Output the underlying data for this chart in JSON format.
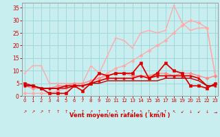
{
  "x": [
    0,
    1,
    2,
    3,
    4,
    5,
    6,
    7,
    8,
    9,
    10,
    11,
    12,
    13,
    14,
    15,
    16,
    17,
    18,
    19,
    20,
    21,
    22,
    23
  ],
  "series": [
    {
      "name": "upper_light1",
      "color": "#ffaaaa",
      "lw": 1.0,
      "marker": "D",
      "markersize": 2.5,
      "y": [
        1,
        1,
        1,
        1,
        2,
        3,
        4,
        5,
        6,
        7,
        9,
        11,
        12,
        14,
        16,
        18,
        20,
        22,
        25,
        28,
        30,
        29,
        27,
        8
      ]
    },
    {
      "name": "upper_light2",
      "color": "#ffaaaa",
      "lw": 1.0,
      "marker": "+",
      "markersize": 3.5,
      "y": [
        9,
        12,
        12,
        5,
        5,
        5,
        5,
        5,
        12,
        9,
        16,
        23,
        22,
        19,
        25,
        26,
        25,
        26,
        36,
        29,
        26,
        27,
        27,
        8
      ]
    },
    {
      "name": "mid_light",
      "color": "#ff8888",
      "lw": 1.0,
      "marker": "D",
      "markersize": 2.5,
      "y": [
        4,
        3,
        3,
        3,
        4,
        4,
        5,
        5,
        6,
        7,
        8,
        9,
        9,
        8,
        8,
        8,
        9,
        9,
        8,
        9,
        9,
        8,
        7,
        8
      ]
    },
    {
      "name": "dark1",
      "color": "#dd0000",
      "lw": 1.3,
      "marker": "s",
      "markersize": 2.5,
      "y": [
        5,
        4,
        3,
        1,
        1,
        1,
        4,
        2,
        5,
        9,
        8,
        9,
        9,
        9,
        13,
        7,
        9,
        13,
        10,
        9,
        4,
        4,
        3,
        5
      ]
    },
    {
      "name": "dark2",
      "color": "#dd0000",
      "lw": 1.3,
      "marker": "^",
      "markersize": 2.5,
      "y": [
        4,
        4,
        3,
        3,
        3,
        4,
        4,
        4,
        5,
        6,
        7,
        7,
        7,
        7,
        8,
        7,
        8,
        8,
        8,
        8,
        8,
        7,
        4,
        4
      ]
    },
    {
      "name": "dark3",
      "color": "#bb0000",
      "lw": 1.0,
      "marker": null,
      "markersize": 2,
      "y": [
        4,
        4,
        3,
        3,
        3,
        3,
        4,
        4,
        5,
        5,
        6,
        6,
        6,
        6,
        6,
        6,
        6,
        7,
        7,
        7,
        7,
        6,
        4,
        4
      ]
    }
  ],
  "xlim": [
    -0.3,
    23.3
  ],
  "ylim": [
    0,
    37
  ],
  "yticks": [
    0,
    5,
    10,
    15,
    20,
    25,
    30,
    35
  ],
  "xticks": [
    0,
    1,
    2,
    3,
    4,
    5,
    6,
    7,
    8,
    9,
    10,
    11,
    12,
    13,
    14,
    15,
    16,
    17,
    18,
    19,
    20,
    21,
    22,
    23
  ],
  "xlabel": "Vent moyen/en rafales ( km/h )",
  "bg_color": "#c8eef0",
  "grid_color": "#a0d8dc",
  "tick_color": "#cc0000",
  "label_color": "#cc0000",
  "axis_color": "#999999",
  "arrow_chars": [
    "↗",
    "↗",
    "↗",
    "↑",
    "↑",
    "↑",
    "↑",
    "↑",
    "↗",
    "↑",
    "↑",
    "↖",
    "↑",
    "↑",
    "↖",
    "↑",
    "↗",
    "↑",
    "↖",
    "↙",
    "↓",
    "↙",
    "↓",
    "→"
  ]
}
